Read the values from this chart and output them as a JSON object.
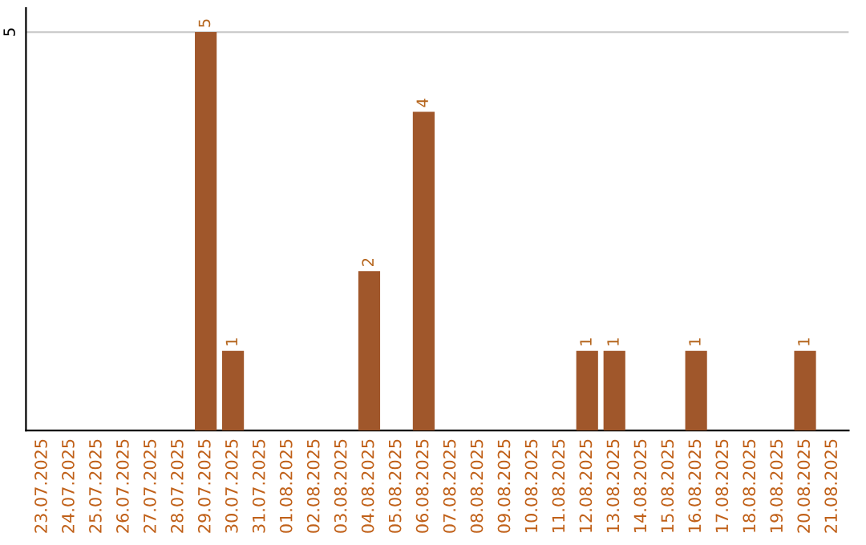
{
  "chart_data": {
    "type": "bar",
    "categories": [
      "23.07.2025",
      "24.07.2025",
      "25.07.2025",
      "26.07.2025",
      "27.07.2025",
      "28.07.2025",
      "29.07.2025",
      "30.07.2025",
      "31.07.2025",
      "01.08.2025",
      "02.08.2025",
      "03.08.2025",
      "04.08.2025",
      "05.08.2025",
      "06.08.2025",
      "07.08.2025",
      "08.08.2025",
      "09.08.2025",
      "10.08.2025",
      "11.08.2025",
      "12.08.2025",
      "13.08.2025",
      "14.08.2025",
      "15.08.2025",
      "16.08.2025",
      "17.08.2025",
      "18.08.2025",
      "19.08.2025",
      "20.08.2025",
      "21.08.2025"
    ],
    "values": [
      0,
      0,
      0,
      0,
      0,
      0,
      5,
      1,
      0,
      0,
      0,
      0,
      2,
      0,
      4,
      0,
      0,
      0,
      0,
      0,
      1,
      1,
      0,
      0,
      1,
      0,
      0,
      0,
      1,
      0
    ],
    "value_labels": [
      null,
      null,
      null,
      null,
      null,
      null,
      "5",
      "1",
      null,
      null,
      null,
      null,
      "2",
      null,
      "4",
      null,
      null,
      null,
      null,
      null,
      "1",
      "1",
      null,
      null,
      "1",
      null,
      null,
      null,
      "1",
      null
    ],
    "color": "#a0572b",
    "ylim": [
      0,
      5.3
    ],
    "yticks": [
      5
    ],
    "grid": "y",
    "legend": false
  }
}
